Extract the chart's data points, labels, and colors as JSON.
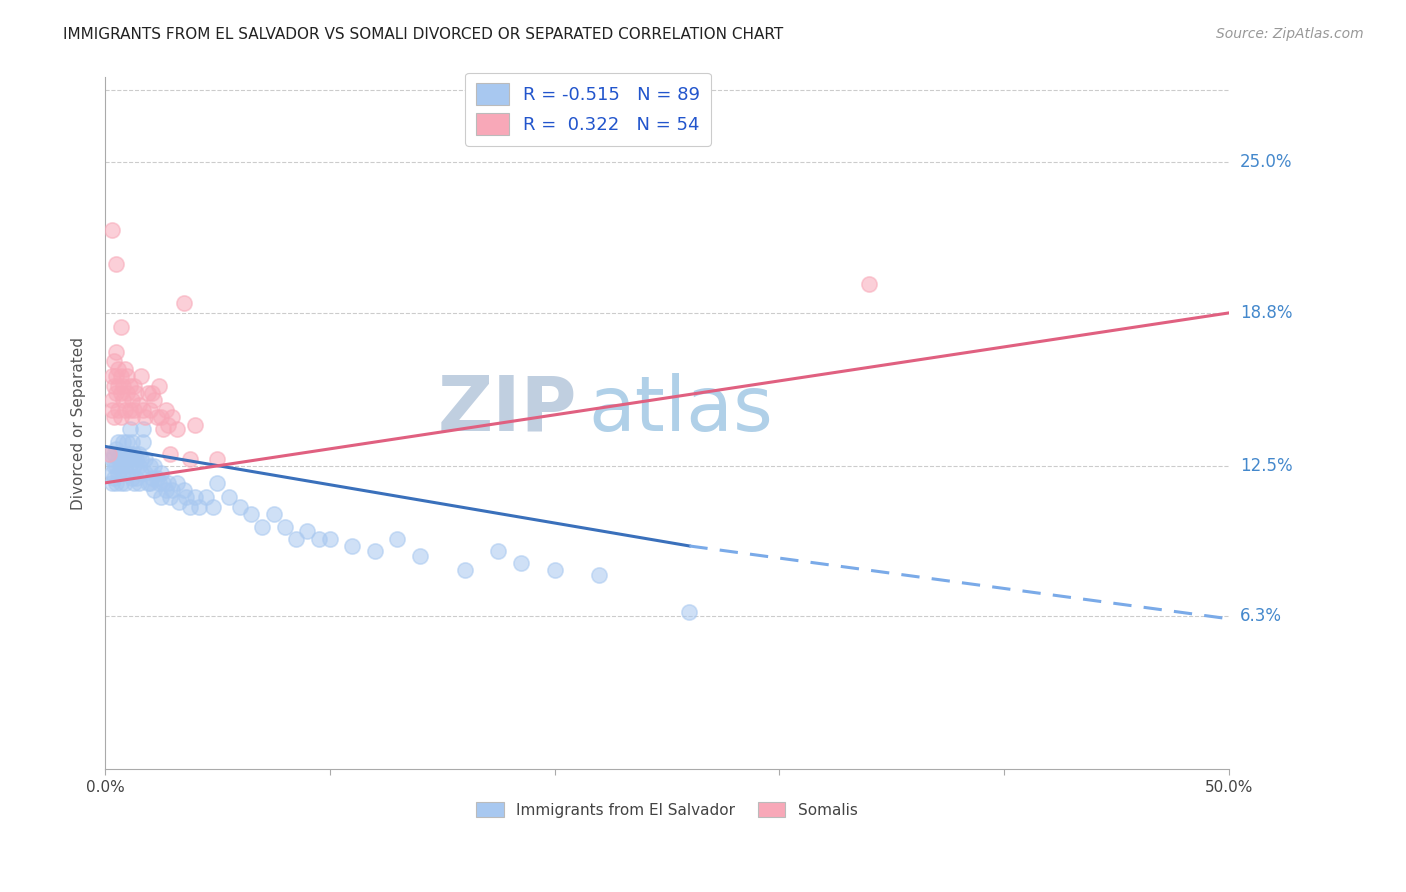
{
  "title": "IMMIGRANTS FROM EL SALVADOR VS SOMALI DIVORCED OR SEPARATED CORRELATION CHART",
  "source": "Source: ZipAtlas.com",
  "ylabel": "Divorced or Separated",
  "ytick_labels": [
    "6.3%",
    "12.5%",
    "18.8%",
    "25.0%"
  ],
  "ytick_values": [
    0.063,
    0.125,
    0.188,
    0.25
  ],
  "xmin": 0.0,
  "xmax": 0.5,
  "ymin": 0.0,
  "ymax": 0.285,
  "legend1_label": "R = -0.515   N = 89",
  "legend2_label": "R =  0.322   N = 54",
  "legend1_color": "#a8c8f0",
  "legend2_color": "#f8a8b8",
  "watermark_zip": "ZIP",
  "watermark_atlas": "atlas",
  "blue_scatter": [
    [
      0.002,
      0.13
    ],
    [
      0.003,
      0.128
    ],
    [
      0.003,
      0.122
    ],
    [
      0.003,
      0.118
    ],
    [
      0.004,
      0.125
    ],
    [
      0.004,
      0.13
    ],
    [
      0.004,
      0.12
    ],
    [
      0.005,
      0.132
    ],
    [
      0.005,
      0.125
    ],
    [
      0.005,
      0.118
    ],
    [
      0.006,
      0.128
    ],
    [
      0.006,
      0.122
    ],
    [
      0.006,
      0.135
    ],
    [
      0.007,
      0.13
    ],
    [
      0.007,
      0.125
    ],
    [
      0.007,
      0.118
    ],
    [
      0.008,
      0.128
    ],
    [
      0.008,
      0.135
    ],
    [
      0.008,
      0.122
    ],
    [
      0.009,
      0.13
    ],
    [
      0.009,
      0.125
    ],
    [
      0.009,
      0.118
    ],
    [
      0.01,
      0.128
    ],
    [
      0.01,
      0.135
    ],
    [
      0.01,
      0.122
    ],
    [
      0.011,
      0.13
    ],
    [
      0.011,
      0.125
    ],
    [
      0.011,
      0.14
    ],
    [
      0.012,
      0.128
    ],
    [
      0.012,
      0.135
    ],
    [
      0.012,
      0.12
    ],
    [
      0.013,
      0.125
    ],
    [
      0.013,
      0.13
    ],
    [
      0.013,
      0.118
    ],
    [
      0.014,
      0.128
    ],
    [
      0.014,
      0.12
    ],
    [
      0.015,
      0.125
    ],
    [
      0.015,
      0.118
    ],
    [
      0.015,
      0.13
    ],
    [
      0.016,
      0.128
    ],
    [
      0.016,
      0.122
    ],
    [
      0.017,
      0.14
    ],
    [
      0.017,
      0.135
    ],
    [
      0.018,
      0.128
    ],
    [
      0.018,
      0.122
    ],
    [
      0.019,
      0.118
    ],
    [
      0.02,
      0.125
    ],
    [
      0.02,
      0.118
    ],
    [
      0.021,
      0.12
    ],
    [
      0.022,
      0.125
    ],
    [
      0.022,
      0.115
    ],
    [
      0.023,
      0.12
    ],
    [
      0.024,
      0.118
    ],
    [
      0.025,
      0.122
    ],
    [
      0.025,
      0.112
    ],
    [
      0.026,
      0.118
    ],
    [
      0.027,
      0.115
    ],
    [
      0.028,
      0.118
    ],
    [
      0.029,
      0.112
    ],
    [
      0.03,
      0.115
    ],
    [
      0.032,
      0.118
    ],
    [
      0.033,
      0.11
    ],
    [
      0.035,
      0.115
    ],
    [
      0.036,
      0.112
    ],
    [
      0.038,
      0.108
    ],
    [
      0.04,
      0.112
    ],
    [
      0.042,
      0.108
    ],
    [
      0.045,
      0.112
    ],
    [
      0.048,
      0.108
    ],
    [
      0.05,
      0.118
    ],
    [
      0.055,
      0.112
    ],
    [
      0.06,
      0.108
    ],
    [
      0.065,
      0.105
    ],
    [
      0.07,
      0.1
    ],
    [
      0.075,
      0.105
    ],
    [
      0.08,
      0.1
    ],
    [
      0.085,
      0.095
    ],
    [
      0.09,
      0.098
    ],
    [
      0.095,
      0.095
    ],
    [
      0.1,
      0.095
    ],
    [
      0.11,
      0.092
    ],
    [
      0.12,
      0.09
    ],
    [
      0.13,
      0.095
    ],
    [
      0.14,
      0.088
    ],
    [
      0.16,
      0.082
    ],
    [
      0.175,
      0.09
    ],
    [
      0.185,
      0.085
    ],
    [
      0.2,
      0.082
    ],
    [
      0.22,
      0.08
    ],
    [
      0.26,
      0.065
    ]
  ],
  "pink_scatter": [
    [
      0.002,
      0.13
    ],
    [
      0.003,
      0.148
    ],
    [
      0.003,
      0.162
    ],
    [
      0.003,
      0.152
    ],
    [
      0.004,
      0.168
    ],
    [
      0.004,
      0.158
    ],
    [
      0.004,
      0.145
    ],
    [
      0.005,
      0.162
    ],
    [
      0.005,
      0.155
    ],
    [
      0.005,
      0.172
    ],
    [
      0.006,
      0.158
    ],
    [
      0.006,
      0.165
    ],
    [
      0.006,
      0.148
    ],
    [
      0.007,
      0.155
    ],
    [
      0.007,
      0.162
    ],
    [
      0.007,
      0.145
    ],
    [
      0.008,
      0.158
    ],
    [
      0.008,
      0.152
    ],
    [
      0.009,
      0.165
    ],
    [
      0.009,
      0.148
    ],
    [
      0.01,
      0.155
    ],
    [
      0.01,
      0.162
    ],
    [
      0.011,
      0.148
    ],
    [
      0.011,
      0.158
    ],
    [
      0.012,
      0.152
    ],
    [
      0.012,
      0.145
    ],
    [
      0.013,
      0.158
    ],
    [
      0.013,
      0.148
    ],
    [
      0.014,
      0.155
    ],
    [
      0.015,
      0.15
    ],
    [
      0.016,
      0.162
    ],
    [
      0.017,
      0.148
    ],
    [
      0.018,
      0.145
    ],
    [
      0.019,
      0.155
    ],
    [
      0.02,
      0.148
    ],
    [
      0.021,
      0.155
    ],
    [
      0.022,
      0.152
    ],
    [
      0.023,
      0.145
    ],
    [
      0.024,
      0.158
    ],
    [
      0.025,
      0.145
    ],
    [
      0.026,
      0.14
    ],
    [
      0.027,
      0.148
    ],
    [
      0.028,
      0.142
    ],
    [
      0.029,
      0.13
    ],
    [
      0.03,
      0.145
    ],
    [
      0.032,
      0.14
    ],
    [
      0.035,
      0.192
    ],
    [
      0.038,
      0.128
    ],
    [
      0.04,
      0.142
    ],
    [
      0.05,
      0.128
    ],
    [
      0.003,
      0.222
    ],
    [
      0.005,
      0.208
    ],
    [
      0.007,
      0.182
    ],
    [
      0.34,
      0.2
    ]
  ],
  "blue_line": {
    "x": [
      0.0,
      0.26
    ],
    "y": [
      0.133,
      0.092
    ]
  },
  "blue_dashed": {
    "x": [
      0.26,
      0.5
    ],
    "y": [
      0.092,
      0.062
    ]
  },
  "pink_line": {
    "x": [
      0.0,
      0.5
    ],
    "y": [
      0.118,
      0.188
    ]
  },
  "title_fontsize": 11,
  "source_fontsize": 10,
  "watermark_fontsize": 55,
  "watermark_color_zip": "#c0cfe0",
  "watermark_color_atlas": "#b0d0e8",
  "scatter_size": 120,
  "scatter_alpha": 0.55,
  "line_width": 2.2
}
